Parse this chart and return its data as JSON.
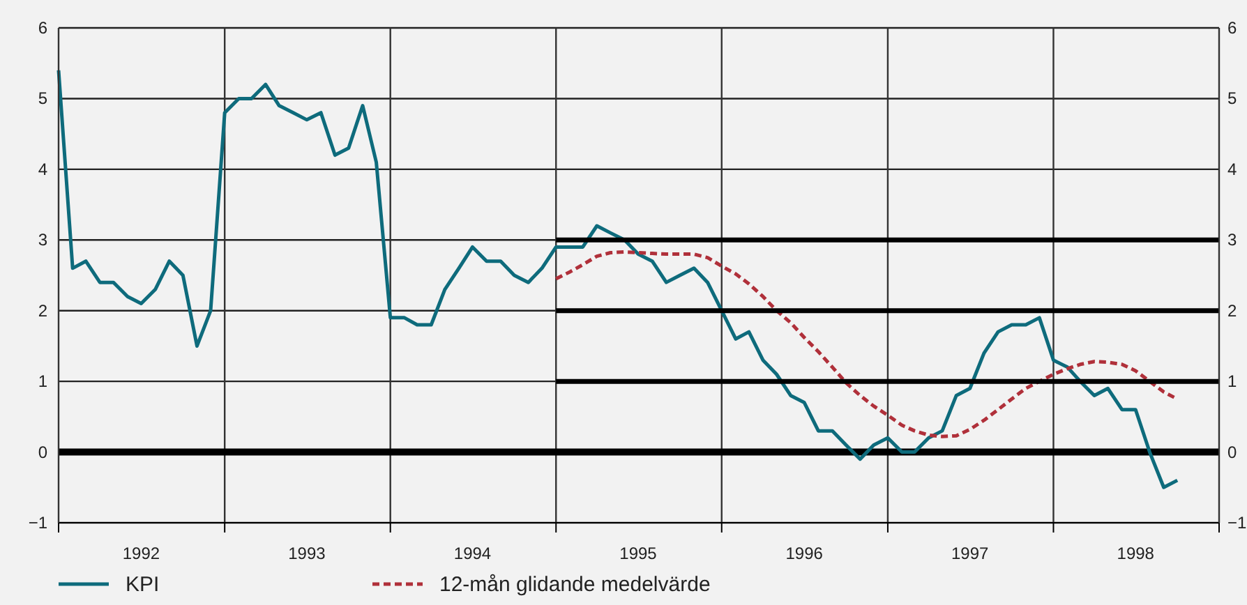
{
  "chart_data": {
    "type": "line",
    "xlim": [
      "1992-01",
      "1999-01"
    ],
    "xticks": [
      {
        "value": "1992-01",
        "label": null
      },
      {
        "value": "1992-07",
        "label": "1992"
      },
      {
        "value": "1993-01",
        "label": null
      },
      {
        "value": "1993-07",
        "label": "1993"
      },
      {
        "value": "1994-01",
        "label": null
      },
      {
        "value": "1994-07",
        "label": "1994"
      },
      {
        "value": "1995-01",
        "label": null
      },
      {
        "value": "1995-07",
        "label": "1995"
      },
      {
        "value": "1996-01",
        "label": null
      },
      {
        "value": "1996-07",
        "label": "1996"
      },
      {
        "value": "1997-01",
        "label": null
      },
      {
        "value": "1997-07",
        "label": "1997"
      },
      {
        "value": "1998-01",
        "label": null
      },
      {
        "value": "1998-07",
        "label": "1998"
      },
      {
        "value": "1999-01",
        "label": null
      }
    ],
    "ylim": [
      -1,
      6
    ],
    "yticks": [
      {
        "value": -1,
        "label": "−1"
      },
      0,
      1,
      2,
      3,
      4,
      5,
      6
    ],
    "y2lim": [
      -1,
      6
    ],
    "y2ticks": [
      {
        "value": -1,
        "label": "−1"
      },
      0,
      1,
      2,
      3,
      4,
      5,
      6
    ],
    "grid": true,
    "legend": "bottom",
    "ref_lines": [
      {
        "axis": "y",
        "value": 0,
        "color": "#000000"
      }
    ],
    "series": [
      {
        "name": "KPI",
        "color": "#0e6b7c",
        "line_style": "solid",
        "x": [
          "1992-01",
          "1992-02",
          "1992-03",
          "1992-04",
          "1992-05",
          "1992-06",
          "1992-07",
          "1992-08",
          "1992-09",
          "1992-10",
          "1992-11",
          "1992-12",
          "1993-01",
          "1993-02",
          "1993-03",
          "1993-04",
          "1993-05",
          "1993-06",
          "1993-07",
          "1993-08",
          "1993-09",
          "1993-10",
          "1993-11",
          "1993-12",
          "1994-01",
          "1994-02",
          "1994-03",
          "1994-04",
          "1994-05",
          "1994-06",
          "1994-07",
          "1994-08",
          "1994-09",
          "1994-10",
          "1994-11",
          "1994-12",
          "1995-01",
          "1995-02",
          "1995-03",
          "1995-04",
          "1995-05",
          "1995-06",
          "1995-07",
          "1995-08",
          "1995-09",
          "1995-10",
          "1995-11",
          "1995-12",
          "1996-01",
          "1996-02",
          "1996-03",
          "1996-04",
          "1996-05",
          "1996-06",
          "1996-07",
          "1996-08",
          "1996-09",
          "1996-10",
          "1996-11",
          "1996-12",
          "1997-01",
          "1997-02",
          "1997-03",
          "1997-04",
          "1997-05",
          "1997-06",
          "1997-07",
          "1997-08",
          "1997-09",
          "1997-10",
          "1997-11",
          "1997-12",
          "1998-01",
          "1998-02",
          "1998-03",
          "1998-04",
          "1998-05",
          "1998-06",
          "1998-07",
          "1998-08",
          "1998-09",
          "1998-10"
        ],
        "values": [
          5.4,
          2.6,
          2.7,
          2.4,
          2.4,
          2.2,
          2.1,
          2.3,
          2.7,
          2.5,
          1.5,
          2.0,
          4.8,
          5.0,
          5.0,
          5.2,
          4.9,
          4.8,
          4.7,
          4.8,
          4.2,
          4.3,
          4.9,
          4.1,
          1.9,
          1.9,
          1.8,
          1.8,
          2.3,
          2.6,
          2.9,
          2.7,
          2.7,
          2.5,
          2.4,
          2.6,
          2.9,
          2.9,
          2.9,
          3.2,
          3.1,
          3.0,
          2.8,
          2.7,
          2.4,
          2.5,
          2.6,
          2.4,
          2.0,
          1.6,
          1.7,
          1.3,
          1.1,
          0.8,
          0.7,
          0.3,
          0.3,
          0.1,
          -0.1,
          0.1,
          0.2,
          0.0,
          0.0,
          0.2,
          0.3,
          0.8,
          0.9,
          1.4,
          1.7,
          1.8,
          1.8,
          1.9,
          1.3,
          1.2,
          1.0,
          0.8,
          0.9,
          0.6,
          0.6,
          0.0,
          -0.5,
          -0.4
        ]
      },
      {
        "name": "12-mån glidande medelvärde",
        "color": "#b0303a",
        "line_style": "dashed",
        "x": [
          "1995-01",
          "1995-02",
          "1995-03",
          "1995-04",
          "1995-05",
          "1995-06",
          "1995-07",
          "1995-08",
          "1995-09",
          "1995-10",
          "1995-11",
          "1995-12",
          "1996-01",
          "1996-02",
          "1996-03",
          "1996-04",
          "1996-05",
          "1996-06",
          "1996-07",
          "1996-08",
          "1996-09",
          "1996-10",
          "1996-11",
          "1996-12",
          "1997-01",
          "1997-02",
          "1997-03",
          "1997-04",
          "1997-05",
          "1997-06",
          "1997-07",
          "1997-08",
          "1997-09",
          "1997-10",
          "1997-11",
          "1997-12",
          "1998-01",
          "1998-02",
          "1998-03",
          "1998-04",
          "1998-05",
          "1998-06",
          "1998-07",
          "1998-08",
          "1998-09",
          "1998-10"
        ],
        "values": [
          2.45,
          2.55,
          2.65,
          2.77,
          2.82,
          2.83,
          2.82,
          2.81,
          2.8,
          2.8,
          2.8,
          2.75,
          2.63,
          2.52,
          2.38,
          2.2,
          2.0,
          1.83,
          1.62,
          1.42,
          1.2,
          0.98,
          0.8,
          0.65,
          0.52,
          0.38,
          0.3,
          0.24,
          0.22,
          0.23,
          0.32,
          0.45,
          0.6,
          0.75,
          0.9,
          1.0,
          1.1,
          1.18,
          1.24,
          1.28,
          1.27,
          1.24,
          1.15,
          1.0,
          0.85,
          0.75
        ]
      },
      {
        "color": "#000000",
        "line_style": "solid",
        "x": [
          "1995-01",
          "1999-01"
        ],
        "values": [
          1,
          1
        ]
      },
      {
        "color": "#000000",
        "line_style": "solid",
        "x": [
          "1995-01",
          "1999-01"
        ],
        "values": [
          2,
          2
        ]
      },
      {
        "color": "#000000",
        "line_style": "solid",
        "x": [
          "1995-01",
          "1999-01"
        ],
        "values": [
          3,
          3
        ]
      }
    ]
  }
}
